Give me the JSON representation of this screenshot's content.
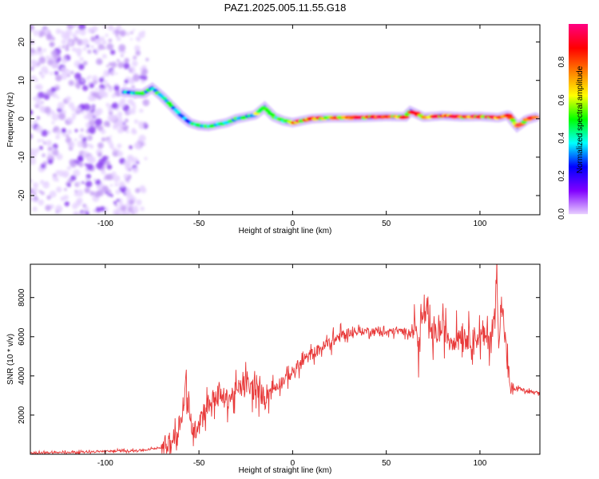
{
  "figure_title": "PAZ1.2025.005.11.55.G18",
  "chart_data": [
    {
      "type": "heatmap",
      "title": "PAZ1.2025.005.11.55.G18",
      "xlabel": "Height of straight line (km)",
      "ylabel": "Frequency (Hz)",
      "xlim": [
        -140,
        132
      ],
      "ylim": [
        -25,
        24.5
      ],
      "xticks": [
        -100,
        -50,
        0,
        50,
        100
      ],
      "yticks": [
        -20,
        -10,
        0,
        10,
        20
      ],
      "colorbar": {
        "label": "Normalized spectral amplitude",
        "range": [
          0,
          1
        ],
        "ticks": [
          0.0,
          0.2,
          0.4,
          0.6,
          0.8
        ],
        "colormap": [
          "#e8d0ff",
          "#8000ff",
          "#0000ff",
          "#00ffff",
          "#00ff00",
          "#ffff00",
          "#ff8000",
          "#ff0000",
          "#ff0080"
        ]
      },
      "ridge": {
        "height_km": [
          -90,
          -80,
          -75,
          -70,
          -65,
          -60,
          -55,
          -50,
          -45,
          -40,
          -35,
          -30,
          -25,
          -20,
          -15,
          -10,
          -5,
          0,
          10,
          20,
          30,
          40,
          50,
          60,
          63,
          70,
          80,
          90,
          100,
          110,
          115,
          120,
          125,
          130
        ],
        "frequency_hz": [
          7,
          6.5,
          8,
          6,
          3.5,
          1,
          -1,
          -1.8,
          -2,
          -1.5,
          -1,
          0,
          0.5,
          1,
          3,
          0.5,
          -0.5,
          -1,
          0,
          0.3,
          0.3,
          0.4,
          0.6,
          0.5,
          2,
          0.4,
          0.8,
          0.5,
          0.6,
          0.3,
          1,
          -2,
          -0.2,
          0.5
        ]
      },
      "noise_region_km": [
        -140,
        -76
      ]
    },
    {
      "type": "line",
      "xlabel": "Height of straight line (km)",
      "ylabel": "SNR (10 * v/v)",
      "xlim": [
        -140,
        132
      ],
      "ylim": [
        0,
        9700
      ],
      "xticks": [
        -100,
        -50,
        0,
        50,
        100
      ],
      "yticks": [
        2000,
        4000,
        6000,
        8000
      ],
      "color": "#e83a3a",
      "series": [
        {
          "x": [
            -140,
            -120,
            -100,
            -80,
            -70,
            -65,
            -62,
            -60,
            -58,
            -57,
            -55,
            -52,
            -50,
            -45,
            -40,
            -35,
            -30,
            -25,
            -20,
            -15,
            -10,
            -5,
            0,
            5,
            10,
            15,
            20,
            25,
            30,
            35,
            40,
            45,
            50,
            55,
            60,
            65,
            66,
            67,
            68,
            70,
            75,
            80,
            85,
            90,
            95,
            100,
            105,
            108,
            109,
            110,
            112,
            115,
            117,
            120,
            125,
            132
          ],
          "y": [
            60,
            100,
            150,
            200,
            350,
            600,
            1000,
            1800,
            2400,
            3800,
            1500,
            1200,
            1800,
            2600,
            3000,
            2800,
            3200,
            3600,
            3200,
            3000,
            3400,
            3800,
            4200,
            4700,
            5100,
            5400,
            5700,
            6000,
            6200,
            6250,
            6300,
            6300,
            6200,
            6300,
            6250,
            6300,
            6800,
            4800,
            6500,
            7200,
            6000,
            6400,
            5800,
            6200,
            5900,
            6000,
            5900,
            7000,
            9600,
            6000,
            7500,
            4200,
            3200,
            3400,
            3200,
            3100
          ]
        }
      ]
    }
  ]
}
